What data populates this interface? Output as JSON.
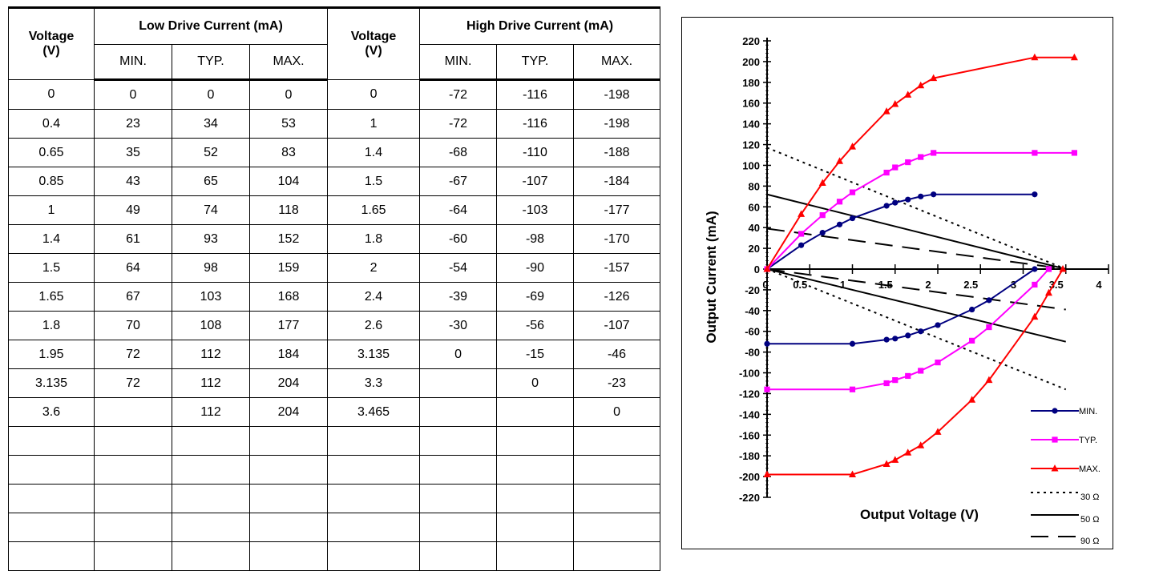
{
  "table": {
    "headers": {
      "voltage_label": "Voltage",
      "voltage_unit": "(V)",
      "low_group": "Low Drive Current (mA)",
      "high_group": "High Drive Current (mA)",
      "sub": [
        "MIN.",
        "TYP.",
        "MAX."
      ]
    },
    "rows": [
      [
        "0",
        "0",
        "0",
        "0",
        "0",
        "-72",
        "-116",
        "-198"
      ],
      [
        "0.4",
        "23",
        "34",
        "53",
        "1",
        "-72",
        "-116",
        "-198"
      ],
      [
        "0.65",
        "35",
        "52",
        "83",
        "1.4",
        "-68",
        "-110",
        "-188"
      ],
      [
        "0.85",
        "43",
        "65",
        "104",
        "1.5",
        "-67",
        "-107",
        "-184"
      ],
      [
        "1",
        "49",
        "74",
        "118",
        "1.65",
        "-64",
        "-103",
        "-177"
      ],
      [
        "1.4",
        "61",
        "93",
        "152",
        "1.8",
        "-60",
        "-98",
        "-170"
      ],
      [
        "1.5",
        "64",
        "98",
        "159",
        "2",
        "-54",
        "-90",
        "-157"
      ],
      [
        "1.65",
        "67",
        "103",
        "168",
        "2.4",
        "-39",
        "-69",
        "-126"
      ],
      [
        "1.8",
        "70",
        "108",
        "177",
        "2.6",
        "-30",
        "-56",
        "-107"
      ],
      [
        "1.95",
        "72",
        "112",
        "184",
        "3.135",
        "0",
        "-15",
        "-46"
      ],
      [
        "3.135",
        "72",
        "112",
        "204",
        "3.3",
        "",
        "0",
        "-23"
      ],
      [
        "3.6",
        "",
        "112",
        "204",
        "3.465",
        "",
        "",
        "0"
      ],
      [
        "",
        "",
        "",
        "",
        "",
        "",
        "",
        ""
      ],
      [
        "",
        "",
        "",
        "",
        "",
        "",
        "",
        ""
      ],
      [
        "",
        "",
        "",
        "",
        "",
        "",
        "",
        ""
      ],
      [
        "",
        "",
        "",
        "",
        "",
        "",
        "",
        ""
      ],
      [
        "",
        "",
        "",
        "",
        "",
        "",
        "",
        ""
      ]
    ]
  },
  "chart_data": {
    "type": "line",
    "xlabel": "Output Voltage (V)",
    "ylabel": "Output Current (mA)",
    "xlim": [
      0,
      4
    ],
    "ylim": [
      -220,
      220
    ],
    "xticks": [
      0,
      0.5,
      1,
      1.5,
      2,
      2.5,
      3,
      3.5,
      4
    ],
    "xtick_labels": [
      "0",
      "0.5",
      "1",
      "1.5",
      "2",
      "2.5",
      "3",
      "3.5",
      "4"
    ],
    "yticks": [
      220,
      200,
      180,
      160,
      140,
      120,
      100,
      80,
      60,
      40,
      20,
      0,
      -20,
      -40,
      -60,
      -80,
      -100,
      -120,
      -140,
      -160,
      -180,
      -200,
      -220
    ],
    "legend_position": "bottom-right",
    "series": [
      {
        "name": "MIN.",
        "color": "#000080",
        "marker": "circle",
        "low": [
          [
            0,
            0
          ],
          [
            0.4,
            23
          ],
          [
            0.65,
            35
          ],
          [
            0.85,
            43
          ],
          [
            1,
            49
          ],
          [
            1.4,
            61
          ],
          [
            1.5,
            64
          ],
          [
            1.65,
            67
          ],
          [
            1.8,
            70
          ],
          [
            1.95,
            72
          ],
          [
            3.135,
            72
          ]
        ],
        "high": [
          [
            0,
            -72
          ],
          [
            1,
            -72
          ],
          [
            1.4,
            -68
          ],
          [
            1.5,
            -67
          ],
          [
            1.65,
            -64
          ],
          [
            1.8,
            -60
          ],
          [
            2,
            -54
          ],
          [
            2.4,
            -39
          ],
          [
            2.6,
            -30
          ],
          [
            3.135,
            0
          ]
        ]
      },
      {
        "name": "TYP.",
        "color": "#FF00FF",
        "marker": "square",
        "low": [
          [
            0,
            0
          ],
          [
            0.4,
            34
          ],
          [
            0.65,
            52
          ],
          [
            0.85,
            65
          ],
          [
            1,
            74
          ],
          [
            1.4,
            93
          ],
          [
            1.5,
            98
          ],
          [
            1.65,
            103
          ],
          [
            1.8,
            108
          ],
          [
            1.95,
            112
          ],
          [
            3.135,
            112
          ],
          [
            3.6,
            112
          ]
        ],
        "high": [
          [
            0,
            -116
          ],
          [
            1,
            -116
          ],
          [
            1.4,
            -110
          ],
          [
            1.5,
            -107
          ],
          [
            1.65,
            -103
          ],
          [
            1.8,
            -98
          ],
          [
            2,
            -90
          ],
          [
            2.4,
            -69
          ],
          [
            2.6,
            -56
          ],
          [
            3.135,
            -15
          ],
          [
            3.3,
            0
          ]
        ]
      },
      {
        "name": "MAX.",
        "color": "#FF0000",
        "marker": "triangle",
        "low": [
          [
            0,
            0
          ],
          [
            0.4,
            53
          ],
          [
            0.65,
            83
          ],
          [
            0.85,
            104
          ],
          [
            1,
            118
          ],
          [
            1.4,
            152
          ],
          [
            1.5,
            159
          ],
          [
            1.65,
            168
          ],
          [
            1.8,
            177
          ],
          [
            1.95,
            184
          ],
          [
            3.135,
            204
          ],
          [
            3.6,
            204
          ]
        ],
        "high": [
          [
            0,
            -198
          ],
          [
            1,
            -198
          ],
          [
            1.4,
            -188
          ],
          [
            1.5,
            -184
          ],
          [
            1.65,
            -177
          ],
          [
            1.8,
            -170
          ],
          [
            2,
            -157
          ],
          [
            2.4,
            -126
          ],
          [
            2.6,
            -107
          ],
          [
            3.135,
            -46
          ],
          [
            3.3,
            -23
          ],
          [
            3.465,
            0
          ]
        ]
      }
    ],
    "load_lines": [
      {
        "name": "30 Ω",
        "dash": "dotted",
        "low": [
          [
            0,
            117
          ],
          [
            3.5,
            0
          ]
        ],
        "high": [
          [
            0,
            0
          ],
          [
            3.5,
            -116
          ]
        ]
      },
      {
        "name": "50 Ω",
        "dash": "solid",
        "low": [
          [
            0,
            72
          ],
          [
            3.5,
            0
          ]
        ],
        "high": [
          [
            0,
            0
          ],
          [
            3.5,
            -70
          ]
        ]
      },
      {
        "name": "90 Ω",
        "dash": "dashed",
        "low": [
          [
            0,
            39
          ],
          [
            3.5,
            0
          ]
        ],
        "high": [
          [
            0,
            0
          ],
          [
            3.5,
            -39
          ]
        ]
      }
    ]
  }
}
